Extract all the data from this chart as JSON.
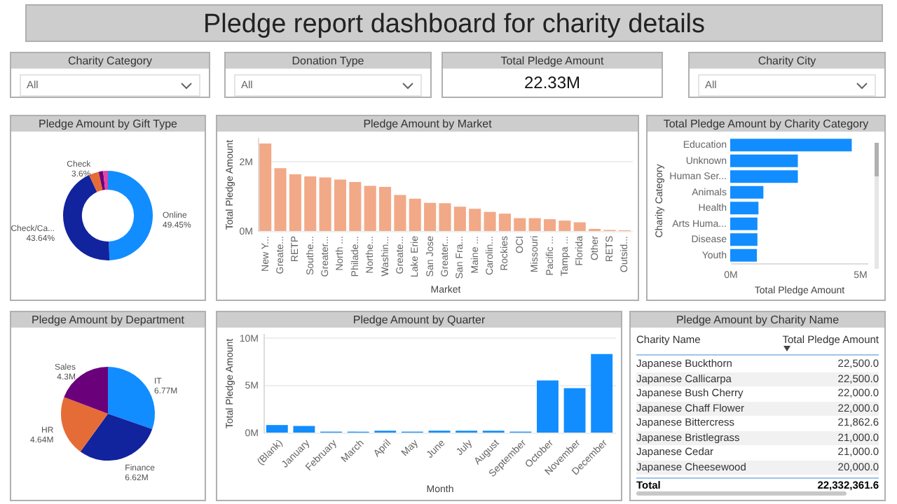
{
  "chart_data": [
    {
      "type": "other",
      "title": "Pledge report dashboard for charity details"
    },
    {
      "type": "other",
      "title": "Charity Category",
      "annotations": [
        "All"
      ]
    },
    {
      "type": "other",
      "title": "Donation Type",
      "annotations": [
        "All"
      ]
    },
    {
      "type": "other",
      "title": "Total Pledge Amount",
      "annotations": [
        "22.33M"
      ]
    },
    {
      "type": "other",
      "title": "Charity City",
      "annotations": [
        "All"
      ]
    },
    {
      "type": "donut",
      "title": "Pledge Amount by Gift Type",
      "categories": [
        "Online",
        "Check/Ca...",
        "Check",
        null,
        null
      ],
      "values": [
        49.45,
        43.64,
        3.6,
        1.6,
        1.71
      ],
      "value_labels": [
        "49.45%",
        "43.64%",
        "3.6%",
        null,
        null
      ],
      "colors": [
        "#118dff",
        "#12239e",
        "#e66c37",
        "#6b007b",
        "#e044a7"
      ]
    },
    {
      "type": "bar",
      "title": "Pledge Amount by Market",
      "xlabel": "Market",
      "ylabel": "Total Pledge Amount",
      "color": "#f2a987",
      "grid": "y",
      "ylim": [
        0,
        2.7
      ],
      "yticks": [
        {
          "value": 0,
          "label": "0M"
        },
        {
          "value": 2,
          "label": "2M"
        }
      ],
      "categories": [
        "New Y...",
        "Greate...",
        "RETP",
        "Southe...",
        "Greater...",
        "North ...",
        "Philade...",
        "Northe...",
        "Washin...",
        "Greate...",
        "Lake Erie",
        "San Jose",
        "Greater...",
        "San Fra...",
        "Maine ...",
        "Carolin...",
        "Rockies",
        "OCI",
        "Missouri",
        "Pacific ...",
        "Tampa ...",
        "Florida",
        "Other",
        "RETS",
        "Outsid..."
      ],
      "values": [
        2.52,
        1.81,
        1.63,
        1.57,
        1.54,
        1.48,
        1.41,
        1.3,
        1.27,
        1.04,
        0.93,
        0.81,
        0.8,
        0.7,
        0.64,
        0.55,
        0.5,
        0.37,
        0.37,
        0.34,
        0.3,
        0.25,
        0.06,
        0.03,
        0.02
      ]
    },
    {
      "type": "bar",
      "orientation": "horizontal",
      "title": "Total Pledge Amount by Charity Category",
      "xlabel": "Total Pledge Amount",
      "ylabel": "Charity Category",
      "color": "#118dff",
      "xlim": [
        0,
        5.3
      ],
      "xticks": [
        {
          "value": 0,
          "label": "0M"
        },
        {
          "value": 5,
          "label": "5M"
        }
      ],
      "categories": [
        "Education",
        "Unknown",
        "Human Ser...",
        "Animals",
        "Health",
        "Arts Huma...",
        "Disease",
        "Youth"
      ],
      "values": [
        4.69,
        2.61,
        2.61,
        1.28,
        1.09,
        1.05,
        1.05,
        1.03
      ]
    },
    {
      "type": "pie",
      "title": "Pledge Amount by Department",
      "categories": [
        "IT",
        "Finance",
        "HR",
        "Sales"
      ],
      "values": [
        6.77,
        6.62,
        4.64,
        4.3
      ],
      "value_labels": [
        "6.77M",
        "6.62M",
        "4.64M",
        "4.3M"
      ],
      "colors": [
        "#118dff",
        "#12239e",
        "#e66c37",
        "#6b007b"
      ]
    },
    {
      "type": "bar",
      "title": "Pledge Amount by Quarter",
      "xlabel": "Month",
      "ylabel": "Total Pledge Amount",
      "color": "#118dff",
      "grid": "y",
      "ylim": [
        0,
        10.5
      ],
      "yticks": [
        {
          "value": 0,
          "label": "0M"
        },
        {
          "value": 5,
          "label": "5M"
        },
        {
          "value": 10,
          "label": "10M"
        }
      ],
      "categories": [
        "(Blank)",
        "January",
        "February",
        "March",
        "April",
        "May",
        "June",
        "July",
        "August",
        "September",
        "October",
        "November",
        "December"
      ],
      "values": [
        0.8,
        0.7,
        0.1,
        0.1,
        0.2,
        0.1,
        0.2,
        0.2,
        0.2,
        0.1,
        5.5,
        4.7,
        8.3
      ]
    },
    {
      "type": "other",
      "title": "Pledge Amount by Charity Name",
      "annotations": [
        "Charity Name",
        "Total Pledge Amount",
        "Japanese Buckthorn",
        "22,500.0",
        "Japanese Callicarpa",
        "22,500.0",
        "Japanese Bush Cherry",
        "22,000.0",
        "Japanese Chaff Flower",
        "22,000.0",
        "Japanese Bittercress",
        "21,862.6",
        "Japanese Bristlegrass",
        "21,000.0",
        "Japanese Cedar",
        "21,000.0",
        "Japanese Cheesewood",
        "20,000.0",
        "Total",
        "22,332,361.6"
      ]
    }
  ]
}
